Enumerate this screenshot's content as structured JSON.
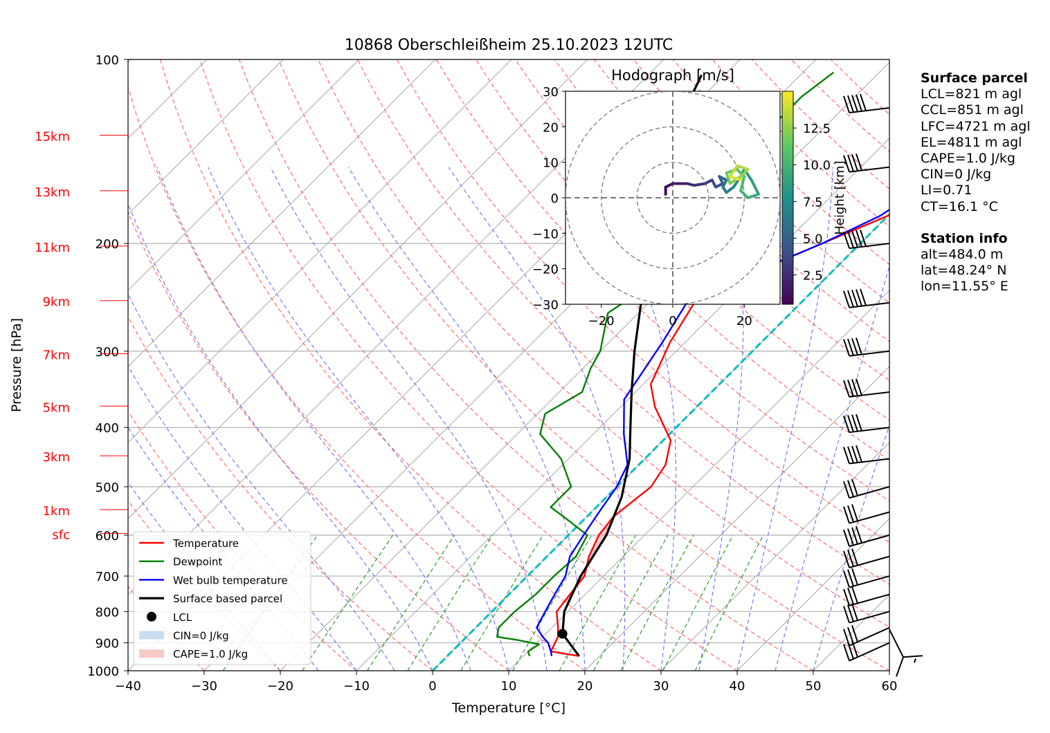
{
  "title": "10868 Oberschleißheim 25.10.2023 12UTC",
  "chart_data": {
    "type": "skew-t",
    "xlabel": "Temperature [°C]",
    "ylabel": "Pressure [hPa]",
    "xlim": [
      -40,
      60
    ],
    "ylim": [
      1000,
      100
    ],
    "x_ticks": [
      -40,
      -30,
      -20,
      -10,
      0,
      10,
      20,
      30,
      40,
      50,
      60
    ],
    "y_ticks": [
      100,
      200,
      300,
      400,
      500,
      600,
      700,
      800,
      900,
      1000
    ],
    "height_labels": [
      {
        "label": "15km",
        "p": 133
      },
      {
        "label": "13km",
        "p": 164
      },
      {
        "label": "11km",
        "p": 202
      },
      {
        "label": "9km",
        "p": 248
      },
      {
        "label": "7km",
        "p": 303
      },
      {
        "label": "5km",
        "p": 369
      },
      {
        "label": "3km",
        "p": 445
      },
      {
        "label": "1km",
        "p": 545
      },
      {
        "label": "sfc",
        "p": 596
      }
    ],
    "grid": true,
    "series": [
      {
        "name": "Temperature",
        "color": "#ff0000",
        "points": [
          [
            17.3,
            946
          ],
          [
            13,
            930
          ],
          [
            12,
            880
          ],
          [
            10.8,
            850
          ],
          [
            8.5,
            800
          ],
          [
            8,
            750
          ],
          [
            7.5,
            700
          ],
          [
            5.5,
            650
          ],
          [
            4,
            600
          ],
          [
            3.5,
            560
          ],
          [
            4.5,
            500
          ],
          [
            3.5,
            460
          ],
          [
            1,
            420
          ],
          [
            -5.5,
            370
          ],
          [
            -9,
            340
          ],
          [
            -12,
            290
          ],
          [
            -14,
            250
          ],
          [
            -12,
            235
          ],
          [
            -10,
            222
          ],
          [
            -5,
            200
          ],
          [
            0,
            180
          ],
          [
            2,
            160
          ],
          [
            2,
            145
          ],
          [
            3,
            125
          ],
          [
            3,
            112
          ],
          [
            5,
            105
          ],
          [
            5.3,
            100
          ]
        ]
      },
      {
        "name": "Dewpoint",
        "color": "#008000",
        "points": [
          [
            10.8,
            946
          ],
          [
            10,
            930
          ],
          [
            10.5,
            905
          ],
          [
            7,
            890
          ],
          [
            4,
            880
          ],
          [
            3,
            850
          ],
          [
            3,
            800
          ],
          [
            3.5,
            750
          ],
          [
            3.5,
            700
          ],
          [
            3.8,
            650
          ],
          [
            2.5,
            600
          ],
          [
            -3,
            560
          ],
          [
            -6,
            540
          ],
          [
            -6,
            500
          ],
          [
            -11,
            450
          ],
          [
            -17,
            410
          ],
          [
            -19,
            380
          ],
          [
            -17,
            350
          ],
          [
            -19,
            320
          ],
          [
            -20,
            300
          ],
          [
            -24,
            260
          ],
          [
            -23,
            245
          ],
          [
            -26,
            240
          ],
          [
            -28,
            220
          ],
          [
            -33,
            200
          ],
          [
            -33,
            185
          ],
          [
            -31,
            170
          ],
          [
            -30,
            155
          ],
          [
            -30,
            140
          ],
          [
            -27,
            130
          ],
          [
            -27,
            115
          ],
          [
            -26,
            105
          ]
        ]
      },
      {
        "name": "Wet bulb temperature",
        "color": "#0000ff",
        "points": [
          [
            13.7,
            946
          ],
          [
            13,
            930
          ],
          [
            11.5,
            900
          ],
          [
            10,
            880
          ],
          [
            8,
            850
          ],
          [
            7,
            800
          ],
          [
            6,
            750
          ],
          [
            5,
            700
          ],
          [
            3,
            650
          ],
          [
            2,
            600
          ],
          [
            1,
            550
          ],
          [
            0,
            500
          ],
          [
            -1.5,
            460
          ],
          [
            -6,
            410
          ],
          [
            -10.5,
            360
          ],
          [
            -13,
            290
          ],
          [
            -15,
            250
          ],
          [
            -12,
            235
          ],
          [
            -10,
            222
          ],
          [
            -5,
            200
          ],
          [
            -1,
            180
          ],
          [
            1,
            160
          ],
          [
            1,
            145
          ],
          [
            2,
            125
          ],
          [
            2,
            112
          ],
          [
            4.5,
            105
          ],
          [
            5,
            100
          ]
        ]
      },
      {
        "name": "Surface based parcel",
        "color": "#000000",
        "points": [
          [
            17.3,
            946
          ],
          [
            12.2,
            870
          ],
          [
            9.5,
            800
          ],
          [
            7,
            700
          ],
          [
            5,
            600
          ],
          [
            2,
            520
          ],
          [
            -2,
            450
          ],
          [
            -6,
            400
          ],
          [
            -10.5,
            350
          ],
          [
            -15.5,
            300
          ],
          [
            -21,
            250
          ],
          [
            -28,
            200
          ],
          [
            -36,
            150
          ],
          [
            -40,
            125
          ],
          [
            -43,
            106
          ]
        ]
      }
    ],
    "lcl": {
      "name": "LCL",
      "t": 12.2,
      "p": 870
    },
    "cin": {
      "label": "CIN=0 J/kg",
      "color": "#a6c8e6"
    },
    "cape": {
      "label": "CAPE=1.0 J/kg",
      "color": "#f2a6a6"
    },
    "isotherm_highlight": {
      "t": 0,
      "color": "#00bfbf"
    },
    "wind_barbs": [
      {
        "p": 950,
        "speed_kt": 5
      },
      {
        "p": 900,
        "speed_kt": 25
      },
      {
        "p": 850,
        "speed_kt": 30
      },
      {
        "p": 800,
        "speed_kt": 25
      },
      {
        "p": 750,
        "speed_kt": 25
      },
      {
        "p": 700,
        "speed_kt": 25
      },
      {
        "p": 650,
        "speed_kt": 30
      },
      {
        "p": 600,
        "speed_kt": 35
      },
      {
        "p": 550,
        "speed_kt": 30
      },
      {
        "p": 500,
        "speed_kt": 30
      },
      {
        "p": 450,
        "speed_kt": 35
      },
      {
        "p": 400,
        "speed_kt": 40
      },
      {
        "p": 350,
        "speed_kt": 40
      },
      {
        "p": 300,
        "speed_kt": 40
      },
      {
        "p": 250,
        "speed_kt": 45
      },
      {
        "p": 200,
        "speed_kt": 45
      },
      {
        "p": 150,
        "speed_kt": 40
      },
      {
        "p": 120,
        "speed_kt": 45
      }
    ],
    "hodograph": {
      "title": "Hodograph [m/s]",
      "xlim": [
        -30,
        30
      ],
      "ylim": [
        -30,
        30
      ],
      "ticks": [
        -30,
        -20,
        -10,
        0,
        10,
        20,
        30
      ],
      "x_ticks": [
        -20,
        0,
        20
      ],
      "rings": [
        10,
        20,
        30
      ],
      "colorbar_label": "Height [km]",
      "colorbar_ticks": [
        2.5,
        5.0,
        7.5,
        10.0,
        12.5
      ],
      "colorbar_range": [
        0.5,
        15
      ],
      "path": [
        [
          -2,
          1,
          0.5
        ],
        [
          -2,
          3,
          1
        ],
        [
          0,
          4,
          1.5
        ],
        [
          4,
          4,
          2
        ],
        [
          6,
          3.5,
          2.5
        ],
        [
          9,
          4,
          3
        ],
        [
          11,
          5,
          3.5
        ],
        [
          12,
          3,
          4
        ],
        [
          14,
          4,
          4.5
        ],
        [
          13,
          6,
          5
        ],
        [
          15,
          5,
          5.5
        ],
        [
          14,
          3,
          6
        ],
        [
          15,
          1.5,
          6.5
        ],
        [
          17,
          3,
          7
        ],
        [
          19,
          6,
          7.5
        ],
        [
          20,
          8,
          8
        ],
        [
          22,
          5,
          8.5
        ],
        [
          24,
          1,
          9
        ],
        [
          21,
          0,
          9.5
        ],
        [
          19,
          2,
          10
        ],
        [
          20,
          6,
          10.5
        ],
        [
          18,
          8,
          11
        ],
        [
          15,
          7,
          11.5
        ],
        [
          16,
          4,
          12
        ],
        [
          19,
          6,
          12.5
        ],
        [
          21,
          8,
          13
        ],
        [
          18,
          9,
          13.5
        ],
        [
          16,
          6,
          14
        ],
        [
          19,
          5,
          14.5
        ]
      ]
    }
  },
  "surface_parcel": {
    "heading": "Surface parcel",
    "lines": [
      "LCL=821 m agl",
      "CCL=851 m agl",
      "LFC=4721 m agl",
      "EL=4811 m agl",
      "CAPE=1.0 J/kg",
      "CIN=0 J/kg",
      "LI=0.71",
      "CT=16.1 °C"
    ]
  },
  "station_info": {
    "heading": "Station info",
    "lines": [
      "alt=484.0 m",
      "lat=48.24° N",
      "lon=11.55° E"
    ]
  }
}
